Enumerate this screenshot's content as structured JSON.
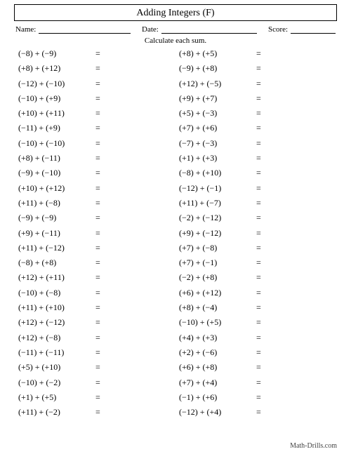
{
  "title": "Adding Integers (F)",
  "labels": {
    "name": "Name:",
    "date": "Date:",
    "score": "Score:"
  },
  "instruction": "Calculate each sum.",
  "equals": "=",
  "plus": "+",
  "footer": "Math-Drills.com",
  "colors": {
    "background": "#ffffff",
    "text": "#000000",
    "footer_text": "#444444",
    "border": "#000000"
  },
  "typography": {
    "title_fontsize": 14,
    "body_fontsize": 12,
    "header_fontsize": 11,
    "footer_fontsize": 10,
    "font_family": "Times New Roman"
  },
  "columns": [
    [
      [
        -8,
        -9
      ],
      [
        8,
        12
      ],
      [
        -12,
        -10
      ],
      [
        -10,
        9
      ],
      [
        10,
        11
      ],
      [
        -11,
        9
      ],
      [
        -10,
        -10
      ],
      [
        8,
        -11
      ],
      [
        -9,
        -10
      ],
      [
        10,
        12
      ],
      [
        11,
        -8
      ],
      [
        -9,
        -9
      ],
      [
        9,
        -11
      ],
      [
        11,
        -12
      ],
      [
        -8,
        8
      ],
      [
        12,
        11
      ],
      [
        -10,
        -8
      ],
      [
        11,
        10
      ],
      [
        12,
        -12
      ],
      [
        12,
        -8
      ],
      [
        -11,
        -11
      ],
      [
        5,
        10
      ],
      [
        -10,
        -2
      ],
      [
        1,
        5
      ],
      [
        11,
        -2
      ]
    ],
    [
      [
        8,
        5
      ],
      [
        -9,
        8
      ],
      [
        12,
        -5
      ],
      [
        9,
        7
      ],
      [
        5,
        -3
      ],
      [
        7,
        6
      ],
      [
        -7,
        -3
      ],
      [
        1,
        3
      ],
      [
        -8,
        10
      ],
      [
        -12,
        -1
      ],
      [
        11,
        -7
      ],
      [
        -2,
        -12
      ],
      [
        9,
        -12
      ],
      [
        7,
        -8
      ],
      [
        7,
        -1
      ],
      [
        -2,
        8
      ],
      [
        6,
        12
      ],
      [
        8,
        -4
      ],
      [
        -10,
        5
      ],
      [
        4,
        3
      ],
      [
        2,
        -6
      ],
      [
        6,
        8
      ],
      [
        7,
        4
      ],
      [
        -1,
        6
      ],
      [
        -12,
        4
      ]
    ]
  ]
}
